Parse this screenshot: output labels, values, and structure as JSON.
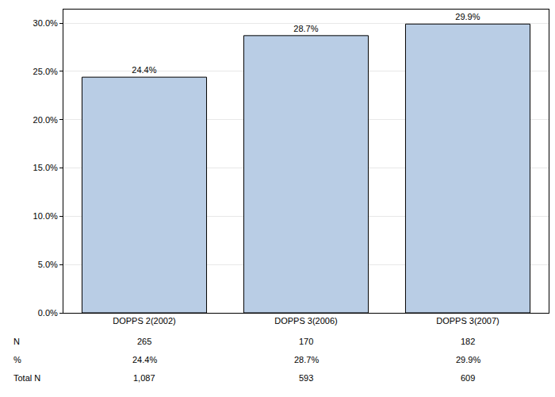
{
  "chart_data": {
    "type": "bar",
    "categories": [
      "DOPPS 2(2002)",
      "DOPPS 3(2006)",
      "DOPPS 3(2007)"
    ],
    "values": [
      24.4,
      28.7,
      29.9
    ],
    "value_labels": [
      "24.4%",
      "28.7%",
      "29.9%"
    ],
    "data_labels": true,
    "color": "#b9cde5",
    "ylim": [
      0,
      31.4
    ],
    "yticks": [
      {
        "value": 0,
        "label": "0.0%"
      },
      {
        "value": 5,
        "label": "5.0%"
      },
      {
        "value": 10,
        "label": "10.0%"
      },
      {
        "value": 15,
        "label": "15.0%"
      },
      {
        "value": 20,
        "label": "20.0%"
      },
      {
        "value": 25,
        "label": "25.0%"
      },
      {
        "value": 30,
        "label": "30.0%"
      }
    ],
    "grid": true,
    "table": {
      "rows": [
        {
          "label": "N",
          "values": [
            "265",
            "170",
            "182"
          ]
        },
        {
          "label": "%",
          "values": [
            "24.4%",
            "28.7%",
            "29.9%"
          ]
        },
        {
          "label": "Total N",
          "values": [
            "1,087",
            "593",
            "609"
          ]
        }
      ]
    }
  }
}
